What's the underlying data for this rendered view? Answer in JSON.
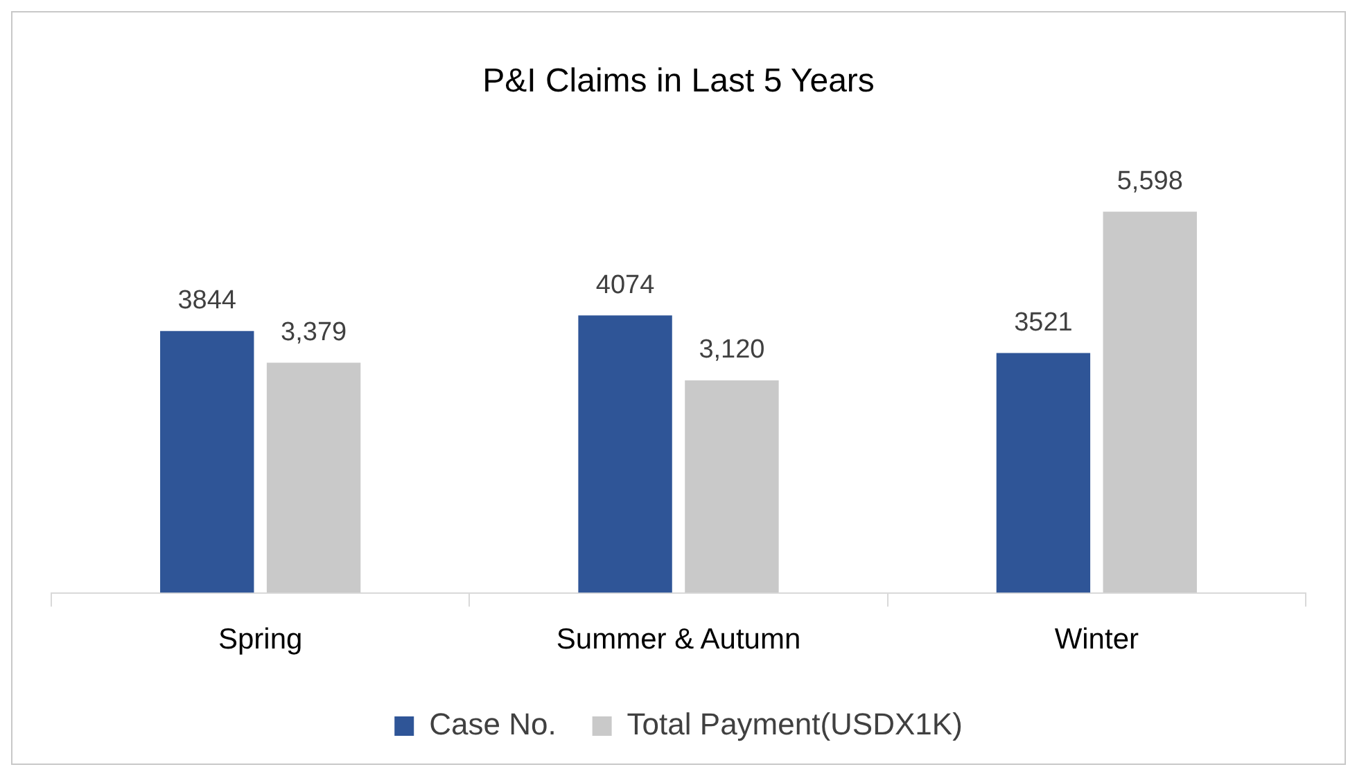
{
  "chart_data": {
    "type": "bar",
    "title": "P&I Claims in Last 5 Years",
    "categories": [
      "Spring",
      "Summer & Autumn",
      "Winter"
    ],
    "series": [
      {
        "name": "Case No.",
        "color": "#2f5597",
        "values": [
          3844,
          4074,
          3521
        ],
        "value_labels": [
          "3844",
          "4074",
          "3521"
        ]
      },
      {
        "name": "Total Payment(USDX1K)",
        "color": "#c9c9c9",
        "values": [
          3379,
          3120,
          5598
        ],
        "value_labels": [
          "3,379",
          "3,120",
          "5,598"
        ]
      }
    ],
    "legend": "bottom"
  }
}
